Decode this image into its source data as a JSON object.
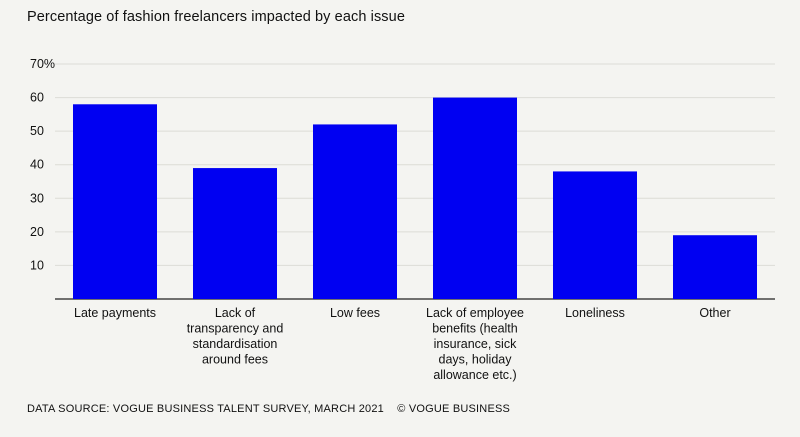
{
  "title": "Percentage of fashion freelancers impacted by each issue",
  "footer": {
    "source": "DATA SOURCE: VOGUE BUSINESS TALENT SURVEY, MARCH 2021",
    "copyright": "© VOGUE BUSINESS"
  },
  "colors": {
    "bar": "#0000f2",
    "grid": "#dcdcd6",
    "axis": "#222222"
  },
  "chart_data": {
    "type": "bar",
    "title": "Percentage of fashion freelancers impacted by each issue",
    "categories": [
      [
        "Late payments"
      ],
      [
        "Lack of",
        "transparency and",
        "standardisation",
        "around fees"
      ],
      [
        "Low fees"
      ],
      [
        "Lack of employee",
        "benefits (health",
        "insurance, sick",
        "days, holiday",
        "allowance etc.)"
      ],
      [
        "Loneliness"
      ],
      [
        "Other"
      ]
    ],
    "values": [
      58,
      39,
      52,
      60,
      38,
      19
    ],
    "ylim": [
      0,
      70
    ],
    "yticks": [
      10,
      20,
      30,
      40,
      50,
      60,
      70
    ],
    "ytick_labels": [
      "10",
      "20",
      "30",
      "40",
      "50",
      "60",
      "70%"
    ],
    "grid": true
  }
}
